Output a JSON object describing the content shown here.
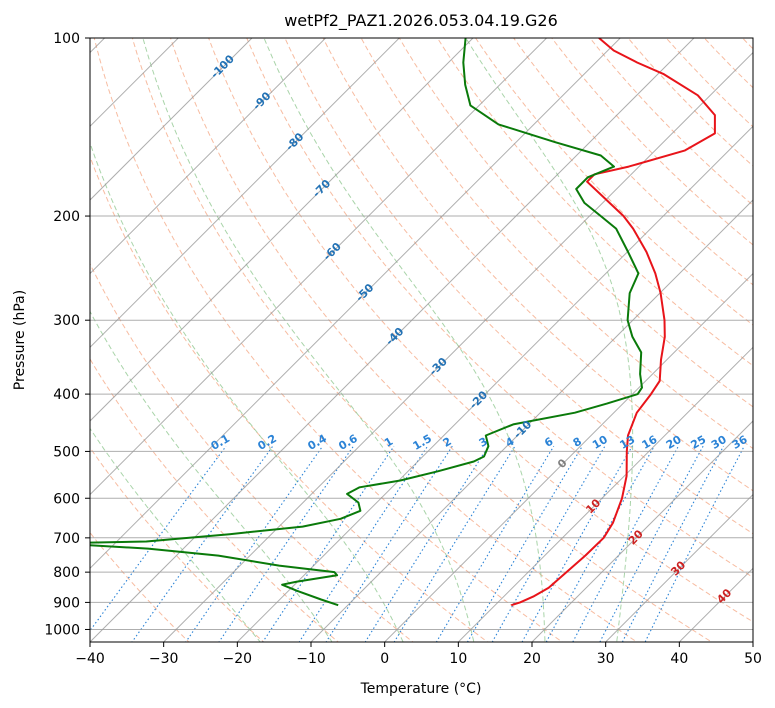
{
  "chart_data": {
    "type": "line",
    "subtype": "skew-t log-p diagram",
    "title": "wetPf2_PAZ1.2026.053.04.19.G26",
    "xlabel": "Temperature (°C)",
    "ylabel": "Pressure (hPa)",
    "xlim": [
      -40,
      50
    ],
    "ylim": [
      1050,
      100
    ],
    "y_scale": "log",
    "x_ticks": [
      -40,
      -30,
      -20,
      -10,
      0,
      10,
      20,
      30,
      40,
      50
    ],
    "x_tick_labels": [
      "−40",
      "−30",
      "−20",
      "−10",
      "0",
      "10",
      "20",
      "30",
      "40",
      "50"
    ],
    "y_ticks": [
      100,
      200,
      300,
      400,
      500,
      600,
      700,
      800,
      900,
      1000
    ],
    "y_tick_labels": [
      "100",
      "200",
      "300",
      "400",
      "500",
      "600",
      "700",
      "800",
      "900",
      "1000"
    ],
    "grid": true,
    "series": [
      {
        "name": "Temperature",
        "color": "#e8141a",
        "points": [
          [
            910,
            12.2
          ],
          [
            900,
            13.0
          ],
          [
            880,
            14.0
          ],
          [
            850,
            14.9
          ],
          [
            800,
            15.2
          ],
          [
            750,
            15.5
          ],
          [
            700,
            15.6
          ],
          [
            660,
            14.8
          ],
          [
            600,
            12.7
          ],
          [
            550,
            10.3
          ],
          [
            500,
            7.0
          ],
          [
            470,
            5.0
          ],
          [
            430,
            3.1
          ],
          [
            400,
            2.5
          ],
          [
            380,
            1.9
          ],
          [
            350,
            -0.8
          ],
          [
            320,
            -3.4
          ],
          [
            300,
            -5.7
          ],
          [
            270,
            -9.9
          ],
          [
            250,
            -13.3
          ],
          [
            230,
            -17.4
          ],
          [
            210,
            -22.4
          ],
          [
            200,
            -25.4
          ],
          [
            185,
            -31.0
          ],
          [
            175,
            -35.0
          ],
          [
            170,
            -35.0
          ],
          [
            165,
            -31.4
          ],
          [
            155,
            -26.0
          ],
          [
            145,
            -24.2
          ],
          [
            135,
            -26.7
          ],
          [
            125,
            -31.7
          ],
          [
            115,
            -39.3
          ],
          [
            110,
            -44.4
          ],
          [
            105,
            -49.2
          ],
          [
            100,
            -52.9
          ]
        ]
      },
      {
        "name": "Dewpoint",
        "color": "#0a7a0a",
        "points": [
          [
            910,
            -11.3
          ],
          [
            890,
            -14.4
          ],
          [
            860,
            -18.9
          ],
          [
            840,
            -21.7
          ],
          [
            830,
            -20.1
          ],
          [
            810,
            -15.5
          ],
          [
            800,
            -16.3
          ],
          [
            780,
            -24.7
          ],
          [
            750,
            -34.3
          ],
          [
            730,
            -44.8
          ],
          [
            715,
            -58.0
          ],
          [
            710,
            -46.0
          ],
          [
            690,
            -35.7
          ],
          [
            670,
            -26.8
          ],
          [
            650,
            -22.7
          ],
          [
            630,
            -21.1
          ],
          [
            610,
            -22.5
          ],
          [
            590,
            -25.2
          ],
          [
            575,
            -24.4
          ],
          [
            560,
            -19.8
          ],
          [
            540,
            -15.9
          ],
          [
            520,
            -12.4
          ],
          [
            510,
            -11.7
          ],
          [
            490,
            -12.5
          ],
          [
            470,
            -14.3
          ],
          [
            450,
            -12.1
          ],
          [
            430,
            -5.3
          ],
          [
            415,
            -2.2
          ],
          [
            400,
            0.7
          ],
          [
            390,
            0.4
          ],
          [
            370,
            -1.7
          ],
          [
            340,
            -4.5
          ],
          [
            320,
            -7.8
          ],
          [
            300,
            -10.7
          ],
          [
            270,
            -14.1
          ],
          [
            250,
            -15.6
          ],
          [
            230,
            -19.9
          ],
          [
            210,
            -24.7
          ],
          [
            200,
            -28.5
          ],
          [
            190,
            -32.5
          ],
          [
            180,
            -35.5
          ],
          [
            172,
            -35.5
          ],
          [
            165,
            -33.4
          ],
          [
            158,
            -36.7
          ],
          [
            150,
            -44.7
          ],
          [
            140,
            -54.8
          ],
          [
            130,
            -61.2
          ],
          [
            120,
            -64.7
          ],
          [
            110,
            -68.0
          ],
          [
            100,
            -71.0
          ]
        ]
      }
    ],
    "reference_lines": {
      "dry_adiabats_c": [
        -30,
        -20,
        -10,
        0,
        10,
        20,
        30,
        40,
        50,
        60,
        70,
        80,
        90,
        100,
        110,
        120,
        130,
        140,
        150,
        160,
        170,
        180,
        190,
        200
      ],
      "moist_adiabats_c": [
        -20,
        -10,
        0,
        10,
        20,
        30
      ],
      "mixing_ratio_g_per_kg": [
        0.1,
        0.2,
        0.4,
        0.6,
        1,
        1.5,
        2,
        3,
        4,
        6,
        8,
        10,
        13,
        16,
        20,
        25,
        30,
        36
      ],
      "mixing_ratio_labels": [
        "0.1",
        "0.2",
        "0.4",
        "0.6",
        "1",
        "1.5",
        "2",
        "3",
        "4",
        "6",
        "8",
        "10",
        "13",
        "16",
        "20",
        "25",
        "30",
        "36"
      ],
      "isotherm_labels_blue": [
        "-100",
        "-90",
        "-80",
        "-70",
        "-60",
        "-50",
        "-40",
        "-30",
        "-20",
        "-10"
      ],
      "isotherm_labels_gray": [
        "0"
      ],
      "isotherm_labels_red": [
        "10",
        "20",
        "30",
        "40"
      ]
    },
    "colors": {
      "temperature": "#e8141a",
      "dewpoint": "#0a7a0a",
      "dry_adiabat": "#f4a582",
      "moist_adiabat": "#8cc68c",
      "mixing_ratio": "#2b83d6",
      "isotherm_grid": "#9a9a9a",
      "label_blue": "#2372b5",
      "label_gray": "#7f7f7f",
      "label_red": "#cc2222"
    }
  }
}
